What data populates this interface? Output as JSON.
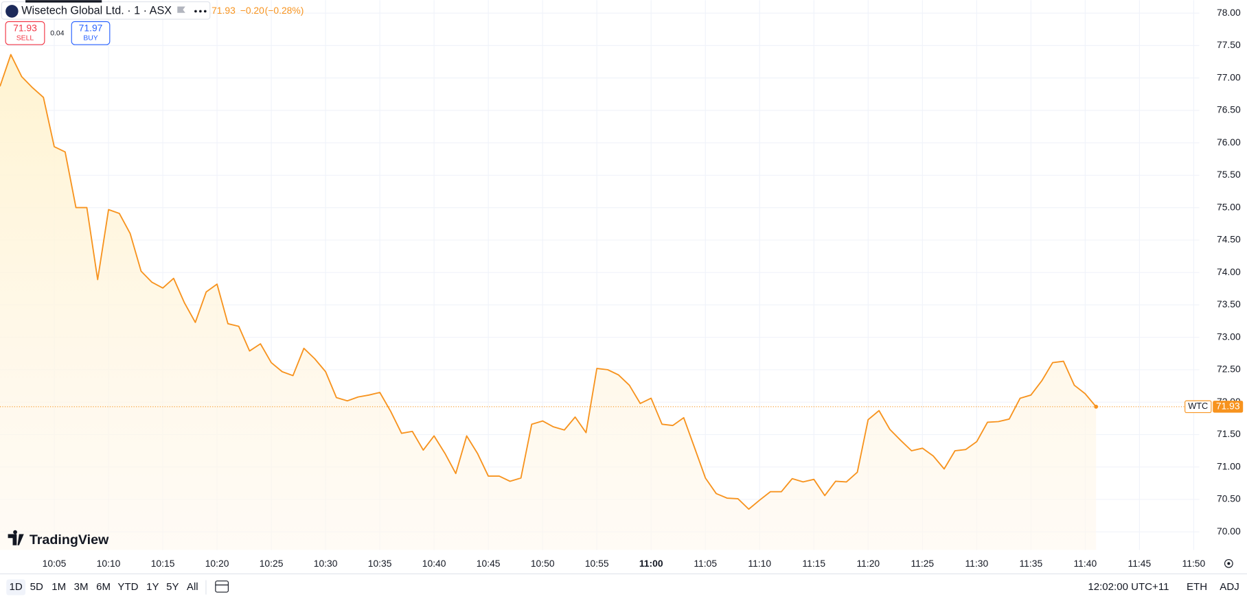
{
  "chart_data": {
    "type": "area",
    "title": "Wisetech Global Ltd. · 1 · ASX",
    "quote": {
      "last": 71.93,
      "change": {
        "value": -0.2,
        "label": "−0.20"
      },
      "change_pct": {
        "value": -0.28,
        "label": "(−0.28%)"
      }
    },
    "sell": {
      "price": 71.93,
      "label": "SELL"
    },
    "spread": 0.04,
    "buy": {
      "price": 71.97,
      "label": "BUY"
    },
    "symbol": "WTC",
    "last_price": 71.93,
    "color": "#f7931e",
    "grid": true,
    "x": [
      "10:00",
      "10:01",
      "10:02",
      "10:03",
      "10:04",
      "10:05",
      "10:06",
      "10:07",
      "10:08",
      "10:09",
      "10:10",
      "10:11",
      "10:12",
      "10:13",
      "10:14",
      "10:15",
      "10:16",
      "10:17",
      "10:18",
      "10:19",
      "10:20",
      "10:21",
      "10:22",
      "10:23",
      "10:24",
      "10:25",
      "10:26",
      "10:27",
      "10:28",
      "10:29",
      "10:30",
      "10:31",
      "10:32",
      "10:33",
      "10:34",
      "10:35",
      "10:36",
      "10:37",
      "10:38",
      "10:39",
      "10:40",
      "10:41",
      "10:42",
      "10:43",
      "10:44",
      "10:45",
      "10:46",
      "10:47",
      "10:48",
      "10:49",
      "10:50",
      "10:51",
      "10:52",
      "10:53",
      "10:54",
      "10:55",
      "10:56",
      "10:57",
      "10:58",
      "10:59",
      "11:00",
      "11:01",
      "11:02",
      "11:03",
      "11:04",
      "11:05",
      "11:06",
      "11:07",
      "11:08",
      "11:09",
      "11:10",
      "11:11",
      "11:12",
      "11:13",
      "11:14",
      "11:15",
      "11:16",
      "11:17",
      "11:18",
      "11:19",
      "11:20",
      "11:21",
      "11:22",
      "11:23",
      "11:24",
      "11:25",
      "11:26",
      "11:27",
      "11:28",
      "11:29",
      "11:30",
      "11:31",
      "11:32",
      "11:33",
      "11:34",
      "11:35",
      "11:36",
      "11:37",
      "11:38",
      "11:39",
      "11:40",
      "11:41"
    ],
    "values": [
      76.87,
      77.36,
      77.02,
      76.85,
      76.7,
      75.94,
      75.86,
      75.0,
      75.0,
      73.89,
      74.97,
      74.91,
      74.6,
      74.02,
      73.85,
      73.76,
      73.91,
      73.53,
      73.23,
      73.7,
      73.82,
      73.21,
      73.17,
      72.79,
      72.9,
      72.61,
      72.47,
      72.41,
      72.83,
      72.67,
      72.47,
      72.07,
      72.02,
      72.08,
      72.11,
      72.15,
      71.86,
      71.52,
      71.55,
      71.26,
      71.48,
      71.21,
      70.9,
      71.48,
      71.21,
      70.86,
      70.86,
      70.78,
      70.83,
      71.66,
      71.71,
      71.62,
      71.57,
      71.77,
      71.53,
      72.52,
      72.5,
      72.42,
      72.26,
      71.98,
      72.06,
      71.66,
      71.64,
      71.76,
      71.3,
      70.83,
      70.59,
      70.52,
      70.51,
      70.35,
      70.49,
      70.62,
      70.62,
      70.82,
      70.77,
      70.81,
      70.56,
      70.78,
      70.77,
      70.92,
      71.73,
      71.87,
      71.58,
      71.41,
      71.25,
      71.29,
      71.17,
      70.97,
      71.25,
      71.27,
      71.39,
      71.69,
      71.7,
      71.74,
      72.06,
      72.11,
      72.33,
      72.61,
      72.63,
      72.26,
      72.13,
      71.93
    ],
    "xlim": [
      "10:00",
      "11:50"
    ],
    "xticks": [
      "10:05",
      "10:10",
      "10:15",
      "10:20",
      "10:25",
      "10:30",
      "10:35",
      "10:40",
      "10:45",
      "10:50",
      "10:55",
      "11:00",
      "11:05",
      "11:10",
      "11:15",
      "11:20",
      "11:25",
      "11:30",
      "11:35",
      "11:40",
      "11:45",
      "11:50"
    ],
    "ylim": [
      69.72,
      78.2
    ],
    "yticks": [
      {
        "value": 70,
        "label": "70.00"
      },
      {
        "value": 70.5,
        "label": "70.50"
      },
      {
        "value": 71,
        "label": "71.00"
      },
      {
        "value": 71.5,
        "label": "71.50"
      },
      {
        "value": 72,
        "label": "72.00"
      },
      {
        "value": 72.5,
        "label": "72.50"
      },
      {
        "value": 73,
        "label": "73.00"
      },
      {
        "value": 73.5,
        "label": "73.50"
      },
      {
        "value": 74,
        "label": "74.00"
      },
      {
        "value": 74.5,
        "label": "74.50"
      },
      {
        "value": 75,
        "label": "75.00"
      },
      {
        "value": 75.5,
        "label": "75.50"
      },
      {
        "value": 76,
        "label": "76.00"
      },
      {
        "value": 76.5,
        "label": "76.50"
      },
      {
        "value": 77,
        "label": "77.00"
      },
      {
        "value": 77.5,
        "label": "77.50"
      },
      {
        "value": 78,
        "label": "78.00"
      }
    ]
  },
  "logo": "TradingView",
  "toolbar": {
    "ranges": [
      "1D",
      "5D",
      "1M",
      "3M",
      "6M",
      "YTD",
      "1Y",
      "5Y",
      "All"
    ],
    "clock": "12:02:00 UTC+11",
    "session": "ETH",
    "adjust": "ADJ"
  }
}
